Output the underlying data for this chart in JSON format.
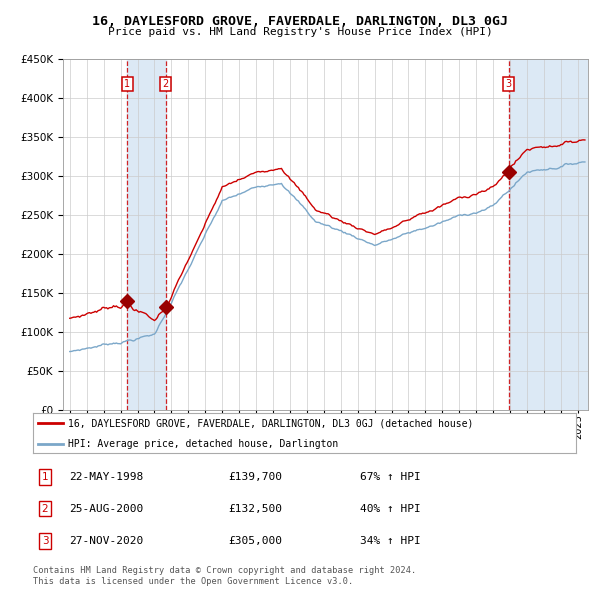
{
  "title": "16, DAYLESFORD GROVE, FAVERDALE, DARLINGTON, DL3 0GJ",
  "subtitle": "Price paid vs. HM Land Registry's House Price Index (HPI)",
  "sale1_price": 139700,
  "sale1_label": "22-MAY-1998",
  "sale1_pct": "67% ↑ HPI",
  "sale1_year": 1998,
  "sale1_month": 5,
  "sale1_day": 22,
  "sale2_price": 132500,
  "sale2_label": "25-AUG-2000",
  "sale2_pct": "40% ↑ HPI",
  "sale2_year": 2000,
  "sale2_month": 8,
  "sale2_day": 25,
  "sale3_price": 305000,
  "sale3_label": "27-NOV-2020",
  "sale3_pct": "34% ↑ HPI",
  "sale3_year": 2020,
  "sale3_month": 11,
  "sale3_day": 27,
  "red_line_color": "#cc0000",
  "blue_line_color": "#7ba7c9",
  "marker_color": "#990000",
  "dashed_color": "#cc0000",
  "shade_color": "#dce9f5",
  "grid_color": "#cccccc",
  "bg_color": "#ffffff",
  "legend_line1": "16, DAYLESFORD GROVE, FAVERDALE, DARLINGTON, DL3 0GJ (detached house)",
  "legend_line2": "HPI: Average price, detached house, Darlington",
  "footer1": "Contains HM Land Registry data © Crown copyright and database right 2024.",
  "footer2": "This data is licensed under the Open Government Licence v3.0.",
  "ylim": [
    0,
    450000
  ],
  "yticks": [
    0,
    50000,
    100000,
    150000,
    200000,
    250000,
    300000,
    350000,
    400000,
    450000
  ]
}
